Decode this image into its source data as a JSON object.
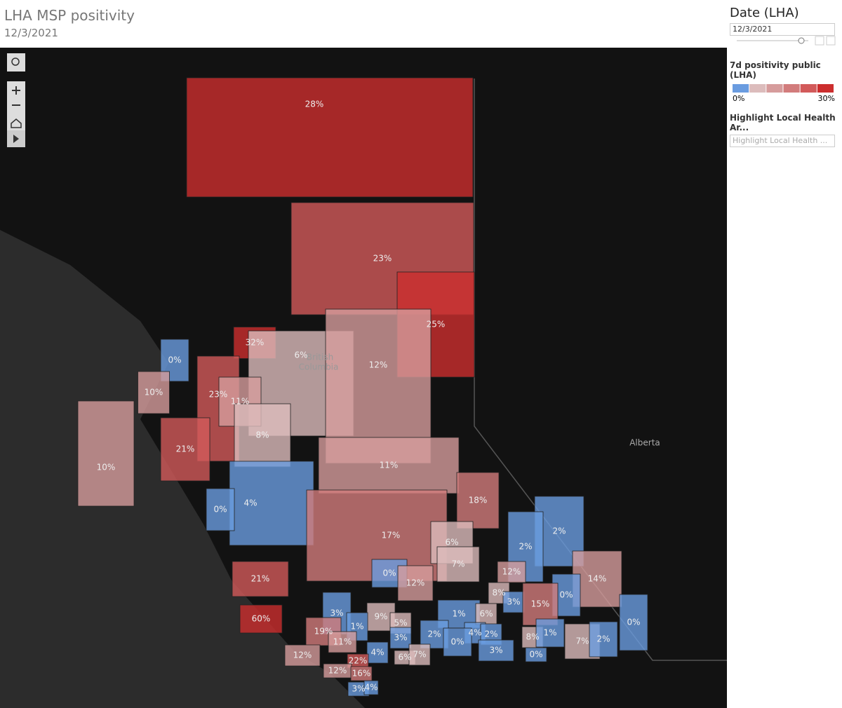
{
  "header": {
    "title": "LHA MSP positivity",
    "subtitle": "12/3/2021"
  },
  "map": {
    "place_labels": [
      "British",
      "Columbia",
      "Alberta"
    ],
    "regions": [
      {
        "label": "28%",
        "value": 28
      },
      {
        "label": "23%",
        "value": 23
      },
      {
        "label": "25%",
        "value": 25
      },
      {
        "label": "32%",
        "value": 32
      },
      {
        "label": "6%",
        "value": 6
      },
      {
        "label": "12%",
        "value": 12
      },
      {
        "label": "0%",
        "value": 0
      },
      {
        "label": "10%",
        "value": 10
      },
      {
        "label": "23%",
        "value": 23
      },
      {
        "label": "11%",
        "value": 11
      },
      {
        "label": "8%",
        "value": 8
      },
      {
        "label": "21%",
        "value": 21
      },
      {
        "label": "10%",
        "value": 10
      },
      {
        "label": "11%",
        "value": 11
      },
      {
        "label": "18%",
        "value": 18
      },
      {
        "label": "4%",
        "value": 4
      },
      {
        "label": "0%",
        "value": 0
      },
      {
        "label": "17%",
        "value": 17
      },
      {
        "label": "6%",
        "value": 6
      },
      {
        "label": "2%",
        "value": 2
      },
      {
        "label": "2%",
        "value": 2
      },
      {
        "label": "7%",
        "value": 7
      },
      {
        "label": "14%",
        "value": 14
      },
      {
        "label": "0%",
        "value": 0
      },
      {
        "label": "12%",
        "value": 12
      },
      {
        "label": "12%",
        "value": 12
      },
      {
        "label": "21%",
        "value": 21
      },
      {
        "label": "8%",
        "value": 8
      },
      {
        "label": "0%",
        "value": 0
      },
      {
        "label": "3%",
        "value": 3
      },
      {
        "label": "15%",
        "value": 15
      },
      {
        "label": "60%",
        "value": 60
      },
      {
        "label": "3%",
        "value": 3
      },
      {
        "label": "1%",
        "value": 1
      },
      {
        "label": "6%",
        "value": 6
      },
      {
        "label": "9%",
        "value": 9
      },
      {
        "label": "5%",
        "value": 5
      },
      {
        "label": "1%",
        "value": 1
      },
      {
        "label": "0%",
        "value": 0
      },
      {
        "label": "19%",
        "value": 19
      },
      {
        "label": "4%",
        "value": 4
      },
      {
        "label": "2%",
        "value": 2
      },
      {
        "label": "2%",
        "value": 2
      },
      {
        "label": "3%",
        "value": 3
      },
      {
        "label": "11%",
        "value": 11
      },
      {
        "label": "8%",
        "value": 8
      },
      {
        "label": "1%",
        "value": 1
      },
      {
        "label": "7%",
        "value": 7
      },
      {
        "label": "2%",
        "value": 2
      },
      {
        "label": "0%",
        "value": 0
      },
      {
        "label": "3%",
        "value": 3
      },
      {
        "label": "4%",
        "value": 4
      },
      {
        "label": "0%",
        "value": 0
      },
      {
        "label": "6%",
        "value": 6
      },
      {
        "label": "7%",
        "value": 7
      },
      {
        "label": "12%",
        "value": 12
      },
      {
        "label": "22%",
        "value": 22
      },
      {
        "label": "12%",
        "value": 12
      },
      {
        "label": "16%",
        "value": 16
      },
      {
        "label": "3%",
        "value": 3
      },
      {
        "label": "4%",
        "value": 4
      }
    ]
  },
  "sidebar": {
    "date_filter": {
      "title": "Date (LHA)",
      "value": "12/3/2021"
    },
    "legend": {
      "title": "7d positivity public (LHA)",
      "colors": [
        "#6a9ce0",
        "#dcbcbc",
        "#d69c9c",
        "#d27c7c",
        "#d25a5a",
        "#cc2e2e"
      ],
      "min": {
        "value": 0,
        "label": "0%"
      },
      "max": {
        "value": 30,
        "label": "30%"
      }
    },
    "highlight": {
      "title": "Highlight Local Health Ar...",
      "placeholder": "Highlight Local Health ..."
    }
  }
}
